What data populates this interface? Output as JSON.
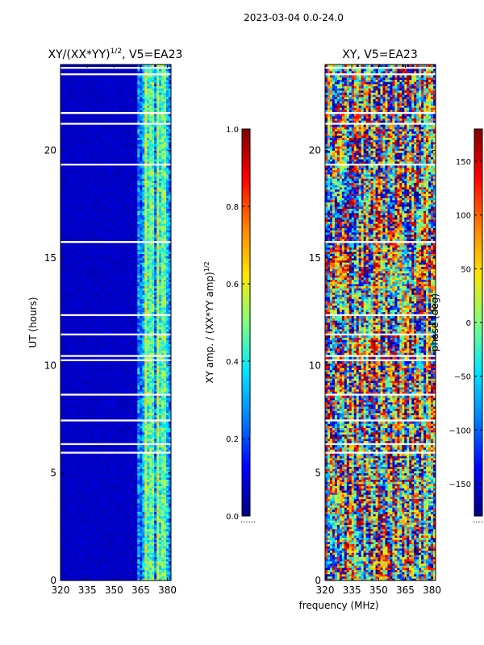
{
  "figure": {
    "suptitle": "2023-03-04 0.0-24.0"
  },
  "colormaps": {
    "name": "jet",
    "stops": [
      "#00007f",
      "#0000ff",
      "#007fff",
      "#00e5ff",
      "#7fff7f",
      "#ffe500",
      "#ff7f00",
      "#ff0000",
      "#7f0000"
    ]
  },
  "chart_data": [
    {
      "type": "heatmap",
      "title_main": "XY/(XX*YY)",
      "title_sup": "1/2",
      "title_tail": ", V5=EA23",
      "xlabel": "",
      "ylabel": "UT (hours)",
      "x_range": [
        320,
        382
      ],
      "y_range": [
        0,
        24
      ],
      "x_ticks": [
        320,
        335,
        350,
        365,
        380
      ],
      "y_ticks": [
        0,
        5,
        10,
        15,
        20
      ],
      "colorbar": {
        "label": "XY amp. / (XX*YY amp)",
        "label_sup": "1/2",
        "range": [
          0.0,
          1.0
        ],
        "ticks": [
          0.0,
          0.2,
          0.4,
          0.6,
          0.8,
          1.0
        ],
        "tick_labels": [
          "0.0",
          "0.2",
          "0.4",
          "0.6",
          "0.8",
          "1.0"
        ],
        "extra_label": "......"
      },
      "description_values": {
        "low_band_value": 0.05,
        "high_band_value_range": [
          0.2,
          0.65
        ],
        "high_band_start_mhz": 363
      }
    },
    {
      "type": "heatmap",
      "title_main": "XY, V5=EA23",
      "xlabel": "frequency (MHz)",
      "ylabel": "",
      "x_range": [
        320,
        382
      ],
      "y_range": [
        0,
        24
      ],
      "x_ticks": [
        320,
        335,
        350,
        365,
        380
      ],
      "y_ticks": [
        0,
        5,
        10,
        15,
        20
      ],
      "colorbar": {
        "label": "phase (deg)",
        "range": [
          -180,
          180
        ],
        "ticks": [
          -150,
          -100,
          -50,
          0,
          50,
          100,
          150
        ],
        "tick_labels": [
          "−150",
          "−100",
          "−50",
          "0",
          "50",
          "100",
          "150"
        ],
        "extra_label": "......"
      }
    }
  ]
}
